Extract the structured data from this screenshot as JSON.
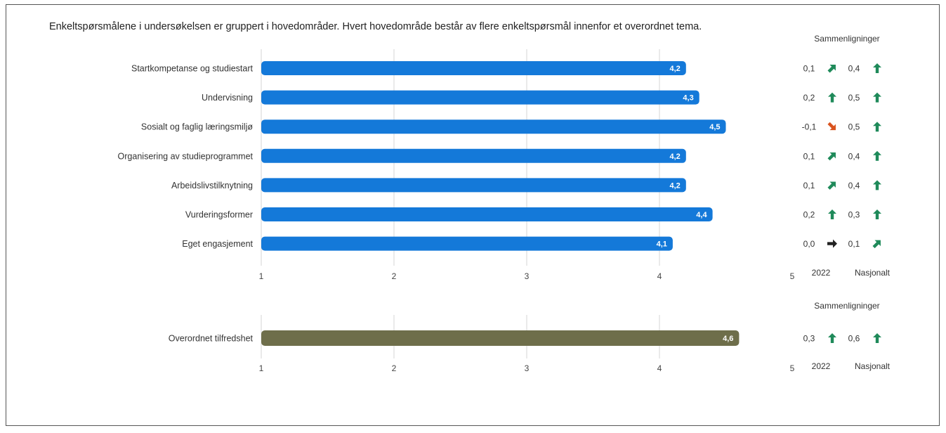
{
  "intro_text": "Enkeltspørsmålene i undersøkelsen er gruppert i hovedområder. Hvert hovedområde består av flere enkeltspørsmål innenfor et overordnet tema.",
  "colors": {
    "main_bar": "#1479d9",
    "overall_bar": "#6e6e4a",
    "arrow_green": "#1f8a5a",
    "arrow_orange": "#d9531e",
    "arrow_neutral": "#222222"
  },
  "chart_data": [
    {
      "type": "bar",
      "orientation": "horizontal",
      "categories": [
        "Startkompetanse og studiestart",
        "Undervisning",
        "Sosialt og faglig læringsmiljø",
        "Organisering av studieprogrammet",
        "Arbeidslivstilknytning",
        "Vurderingsformer",
        "Eget engasjement"
      ],
      "values": [
        4.2,
        4.3,
        4.5,
        4.2,
        4.2,
        4.4,
        4.1
      ],
      "value_labels": [
        "4,2",
        "4,3",
        "4,5",
        "4,2",
        "4,2",
        "4,4",
        "4,1"
      ],
      "xlim": [
        1,
        5
      ],
      "ticks": [
        "1",
        "2",
        "3",
        "4",
        "5"
      ],
      "grid": true,
      "comparisons": {
        "header": "Sammenligninger",
        "columns": [
          "2022",
          "Nasjonalt"
        ],
        "rows": [
          [
            {
              "value": "0,1",
              "arrow": "up-right"
            },
            {
              "value": "0,4",
              "arrow": "up"
            }
          ],
          [
            {
              "value": "0,2",
              "arrow": "up"
            },
            {
              "value": "0,5",
              "arrow": "up"
            }
          ],
          [
            {
              "value": "-0,1",
              "arrow": "down-right"
            },
            {
              "value": "0,5",
              "arrow": "up"
            }
          ],
          [
            {
              "value": "0,1",
              "arrow": "up-right"
            },
            {
              "value": "0,4",
              "arrow": "up"
            }
          ],
          [
            {
              "value": "0,1",
              "arrow": "up-right"
            },
            {
              "value": "0,4",
              "arrow": "up"
            }
          ],
          [
            {
              "value": "0,2",
              "arrow": "up"
            },
            {
              "value": "0,3",
              "arrow": "up"
            }
          ],
          [
            {
              "value": "0,0",
              "arrow": "right"
            },
            {
              "value": "0,1",
              "arrow": "up-right"
            }
          ]
        ]
      }
    },
    {
      "type": "bar",
      "orientation": "horizontal",
      "categories": [
        "Overordnet tilfredshet"
      ],
      "values": [
        4.6
      ],
      "value_labels": [
        "4,6"
      ],
      "xlim": [
        1,
        5
      ],
      "ticks": [
        "1",
        "2",
        "3",
        "4",
        "5"
      ],
      "grid": true,
      "comparisons": {
        "header": "Sammenligninger",
        "columns": [
          "2022",
          "Nasjonalt"
        ],
        "rows": [
          [
            {
              "value": "0,3",
              "arrow": "up"
            },
            {
              "value": "0,6",
              "arrow": "up"
            }
          ]
        ]
      }
    }
  ]
}
